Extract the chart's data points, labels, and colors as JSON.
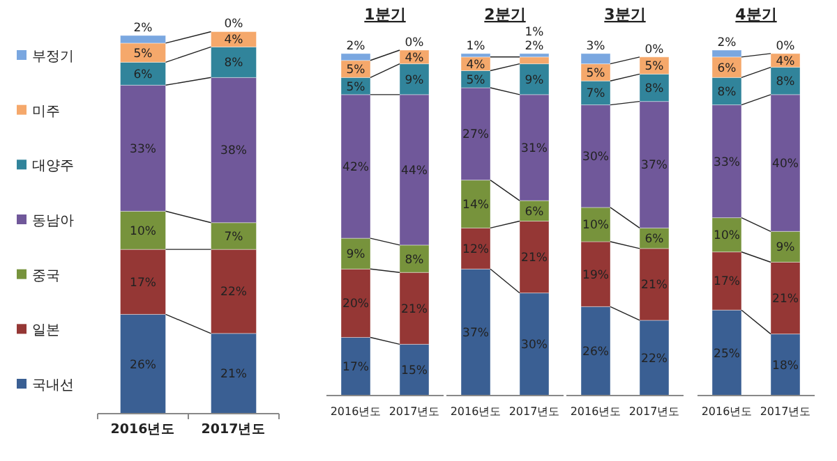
{
  "chart_data": [
    {
      "type": "bar",
      "stacked": true,
      "categories": [
        "2016년도",
        "2017년도"
      ],
      "ylim": [
        0,
        101
      ],
      "legend": "left",
      "series": [
        {
          "name": "국내선",
          "color": "#3a5f93",
          "values": [
            26,
            21
          ],
          "value_labels": [
            "26%",
            "21%"
          ]
        },
        {
          "name": "일본",
          "color": "#953735",
          "values": [
            17,
            22
          ],
          "value_labels": [
            "17%",
            "22%"
          ]
        },
        {
          "name": "중국",
          "color": "#77933c",
          "values": [
            10,
            7
          ],
          "value_labels": [
            "10%",
            "7%"
          ]
        },
        {
          "name": "동남아",
          "color": "#70589a",
          "values": [
            33,
            38
          ],
          "value_labels": [
            "33%",
            "38%"
          ]
        },
        {
          "name": "대양주",
          "color": "#31849b",
          "values": [
            6,
            8
          ],
          "value_labels": [
            "6%",
            "8%"
          ]
        },
        {
          "name": "미주",
          "color": "#f5a86b",
          "values": [
            5,
            4
          ],
          "value_labels": [
            "5%",
            "4%"
          ]
        },
        {
          "name": "부정기",
          "color": "#7aa7e0",
          "values": [
            2,
            0
          ],
          "value_labels": [
            "2%",
            "0%"
          ]
        }
      ]
    },
    {
      "type": "bar",
      "stacked": true,
      "title": "1분기",
      "categories": [
        "2016년도",
        "2017년도"
      ],
      "ylim": [
        0,
        101
      ],
      "series": [
        {
          "color": "#3a5f93",
          "values": [
            17,
            15
          ],
          "value_labels": [
            "17%",
            "15%"
          ]
        },
        {
          "color": "#953735",
          "values": [
            20,
            21
          ],
          "value_labels": [
            "20%",
            "21%"
          ]
        },
        {
          "color": "#77933c",
          "values": [
            9,
            8
          ],
          "value_labels": [
            "9%",
            "8%"
          ]
        },
        {
          "color": "#70589a",
          "values": [
            42,
            44
          ],
          "value_labels": [
            "42%",
            "44%"
          ]
        },
        {
          "color": "#31849b",
          "values": [
            5,
            9
          ],
          "value_labels": [
            "5%",
            "9%"
          ]
        },
        {
          "color": "#f5a86b",
          "values": [
            5,
            4
          ],
          "value_labels": [
            "5%",
            "4%"
          ]
        },
        {
          "color": "#7aa7e0",
          "values": [
            2,
            0
          ],
          "value_labels": [
            "2%",
            "0%"
          ]
        }
      ]
    },
    {
      "type": "bar",
      "stacked": true,
      "title": "2분기",
      "categories": [
        "2016년도",
        "2017년도"
      ],
      "ylim": [
        0,
        101
      ],
      "series": [
        {
          "color": "#3a5f93",
          "values": [
            37,
            30
          ],
          "value_labels": [
            "37%",
            "30%"
          ]
        },
        {
          "color": "#953735",
          "values": [
            12,
            21
          ],
          "value_labels": [
            "12%",
            "21%"
          ]
        },
        {
          "color": "#77933c",
          "values": [
            14,
            6
          ],
          "value_labels": [
            "14%",
            "6%"
          ]
        },
        {
          "color": "#70589a",
          "values": [
            27,
            31
          ],
          "value_labels": [
            "27%",
            "31%"
          ]
        },
        {
          "color": "#31849b",
          "values": [
            5,
            9
          ],
          "value_labels": [
            "5%",
            "9%"
          ]
        },
        {
          "color": "#f5a86b",
          "values": [
            4,
            2
          ],
          "value_labels": [
            "4%",
            "2%"
          ]
        },
        {
          "color": "#7aa7e0",
          "values": [
            1,
            1
          ],
          "value_labels": [
            "1%",
            "1%"
          ]
        }
      ]
    },
    {
      "type": "bar",
      "stacked": true,
      "title": "3분기",
      "categories": [
        "2016년도",
        "2017년도"
      ],
      "ylim": [
        0,
        101
      ],
      "series": [
        {
          "color": "#3a5f93",
          "values": [
            26,
            22
          ],
          "value_labels": [
            "26%",
            "22%"
          ]
        },
        {
          "color": "#953735",
          "values": [
            19,
            21
          ],
          "value_labels": [
            "19%",
            "21%"
          ]
        },
        {
          "color": "#77933c",
          "values": [
            10,
            6
          ],
          "value_labels": [
            "10%",
            "6%"
          ]
        },
        {
          "color": "#70589a",
          "values": [
            30,
            37
          ],
          "value_labels": [
            "30%",
            "37%"
          ]
        },
        {
          "color": "#31849b",
          "values": [
            7,
            8
          ],
          "value_labels": [
            "7%",
            "8%"
          ]
        },
        {
          "color": "#f5a86b",
          "values": [
            5,
            5
          ],
          "value_labels": [
            "5%",
            "5%"
          ]
        },
        {
          "color": "#7aa7e0",
          "values": [
            3,
            0
          ],
          "value_labels": [
            "3%",
            "0%"
          ]
        }
      ]
    },
    {
      "type": "bar",
      "stacked": true,
      "title": "4분기",
      "categories": [
        "2016년도",
        "2017년도"
      ],
      "ylim": [
        0,
        101
      ],
      "series": [
        {
          "color": "#3a5f93",
          "values": [
            25,
            18
          ],
          "value_labels": [
            "25%",
            "18%"
          ]
        },
        {
          "color": "#953735",
          "values": [
            17,
            21
          ],
          "value_labels": [
            "17%",
            "21%"
          ]
        },
        {
          "color": "#77933c",
          "values": [
            10,
            9
          ],
          "value_labels": [
            "10%",
            "9%"
          ]
        },
        {
          "color": "#70589a",
          "values": [
            33,
            40
          ],
          "value_labels": [
            "33%",
            "40%"
          ]
        },
        {
          "color": "#31849b",
          "values": [
            8,
            8
          ],
          "value_labels": [
            "8%",
            "8%"
          ]
        },
        {
          "color": "#f5a86b",
          "values": [
            6,
            4
          ],
          "value_labels": [
            "6%",
            "4%"
          ]
        },
        {
          "color": "#7aa7e0",
          "values": [
            2,
            0
          ],
          "value_labels": [
            "2%",
            "0%"
          ]
        }
      ]
    }
  ]
}
